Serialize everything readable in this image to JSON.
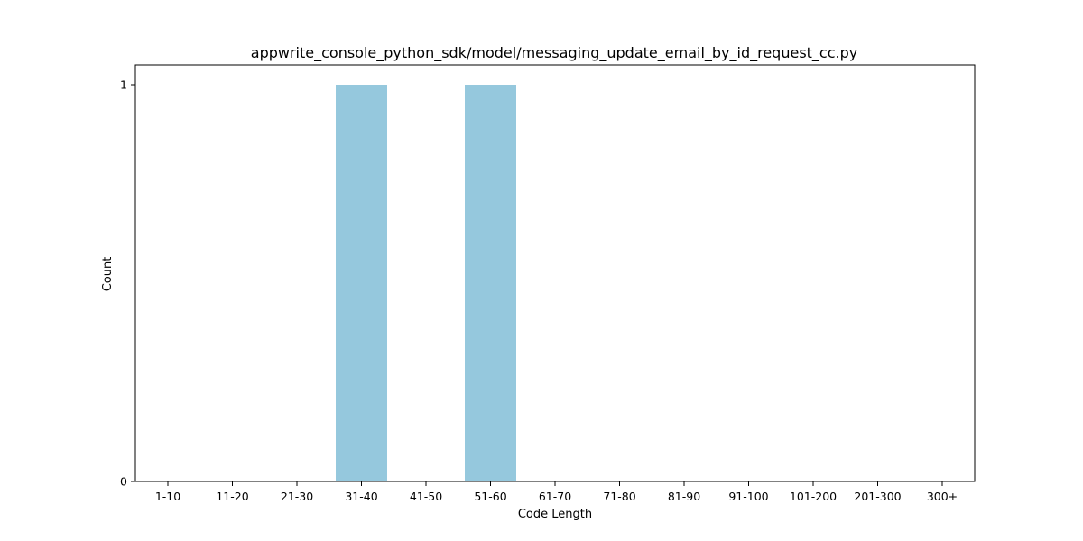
{
  "chart_data": {
    "type": "bar",
    "title": "appwrite_console_python_sdk/model/messaging_update_email_by_id_request_cc.py",
    "xlabel": "Code Length",
    "ylabel": "Count",
    "categories": [
      "1-10",
      "11-20",
      "21-30",
      "31-40",
      "41-50",
      "51-60",
      "61-70",
      "71-80",
      "81-90",
      "91-100",
      "101-200",
      "201-300",
      "300+"
    ],
    "values": [
      0,
      0,
      0,
      1,
      0,
      1,
      0,
      0,
      0,
      0,
      0,
      0,
      0
    ],
    "yticks": [
      0,
      1
    ],
    "ylim": [
      0,
      1
    ],
    "bar_color": "#95c8dd",
    "grid": false,
    "legend": "none"
  }
}
